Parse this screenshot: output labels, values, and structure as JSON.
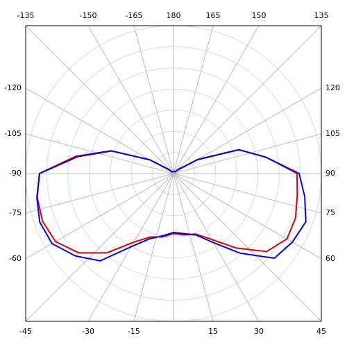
{
  "chart_data": {
    "type": "polar",
    "thetaticks": [
      -165,
      -150,
      -135,
      -120,
      -105,
      -90,
      -75,
      -60,
      -45,
      -30,
      -15,
      {
        "value": 0,
        "label": null
      },
      15,
      30,
      45,
      60,
      75,
      90,
      105,
      120,
      135,
      150,
      165,
      180
    ],
    "rlim": [
      0,
      7
    ],
    "rticks": [
      1,
      2,
      3,
      4,
      5,
      6,
      7
    ],
    "grid": true,
    "theta": [
      -180,
      -170,
      -160,
      -150,
      -140,
      -130,
      -120,
      -110,
      -100,
      -90,
      -80,
      -70,
      -60,
      -50,
      -40,
      -30,
      -20,
      -10,
      0,
      10,
      20,
      30,
      40,
      50,
      60,
      70,
      80,
      90,
      100,
      110,
      120,
      130,
      140,
      150,
      160,
      170
    ],
    "series": [
      {
        "color": "#e00000",
        "values": [
          0.1,
          0.1,
          0.1,
          0.1,
          0.1,
          0.3,
          1.3,
          3.15,
          4.7,
          6.35,
          6.55,
          6.6,
          6.45,
          5.85,
          4.9,
          3.75,
          3.2,
          3.05,
          2.85,
          2.95,
          3.05,
          3.6,
          4.6,
          5.75,
          6.2,
          6.15,
          5.95,
          5.85,
          4.45,
          3.3,
          1.35,
          0.3,
          0.1,
          0.1,
          0.1,
          0.1
        ]
      },
      {
        "color": "#0000e0",
        "values": [
          0.1,
          0.1,
          0.1,
          0.1,
          0.1,
          0.3,
          1.3,
          3.12,
          4.6,
          6.34,
          6.57,
          6.74,
          6.64,
          6.07,
          5.4,
          4.0,
          3.29,
          3.0,
          2.79,
          2.89,
          3.1,
          3.78,
          4.93,
          6.24,
          6.5,
          6.67,
          6.31,
          5.95,
          4.44,
          3.29,
          1.3,
          0.3,
          0.1,
          0.1,
          0.1,
          0.1
        ]
      }
    ]
  }
}
